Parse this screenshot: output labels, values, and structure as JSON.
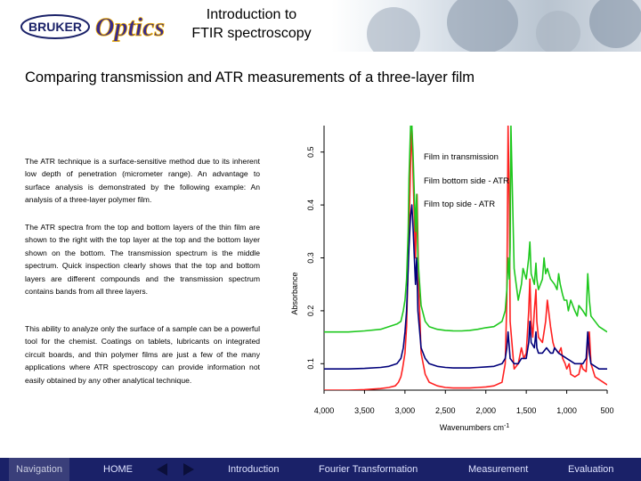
{
  "header": {
    "logo_brand": "BRUKER",
    "logo_script": "Optics",
    "title_line1": "Introduction to",
    "title_line2": "FTIR spectroscopy"
  },
  "subtitle": "Comparing transmission and ATR measurements of a three-layer film",
  "paragraphs": {
    "p1": "The ATR technique is a surface-sensitive method due to its inherent low depth of penetration (micrometer range). An advantage to surface analysis is demonstrated by the following example: An analysis of a three-layer polymer film.",
    "p2": "The ATR spectra from the top and bottom layers of the thin film are shown to the right with the top layer at the top and the bottom layer shown on the bottom.  The transmission spectrum is the middle spectrum. Quick inspection clearly shows that the top and bottom layers are different compounds and the transmission spectrum contains bands from all three layers.",
    "p3": "This ability to analyze only the surface of a sample can be a powerful tool for the chemist. Coatings on tablets, lubricants on integrated circuit boards, and thin polymer films are just a few of the many applications where ATR spectroscopy can provide information not easily obtained by any other analytical technique."
  },
  "chart_data": {
    "type": "line",
    "title": "",
    "xlabel": "Wavenumbers cm-1",
    "ylabel": "Absorbance",
    "xlim": [
      4000,
      500
    ],
    "ylim": [
      0.05,
      0.55
    ],
    "x_ticks": [
      4000,
      3500,
      3000,
      2500,
      2000,
      1500,
      1000,
      500
    ],
    "x_tick_labels": [
      "4,000",
      "3,500",
      "3,000",
      "2,500",
      "2,000",
      "1,500",
      "1,000",
      "500"
    ],
    "y_ticks": [
      0.1,
      0.2,
      0.3,
      0.4,
      0.5
    ],
    "y_tick_labels": [
      "0.1",
      "0.2",
      "0.3",
      "0.4",
      "0.5"
    ],
    "legend_placement": "top-right",
    "series": [
      {
        "name": "Film in transmission",
        "color": "#ff2020",
        "x": [
          4000,
          3700,
          3500,
          3300,
          3200,
          3120,
          3080,
          3050,
          3030,
          3000,
          2980,
          2950,
          2930,
          2915,
          2900,
          2870,
          2850,
          2830,
          2800,
          2750,
          2700,
          2600,
          2500,
          2400,
          2300,
          2200,
          2100,
          2000,
          1900,
          1800,
          1760,
          1740,
          1725,
          1710,
          1700,
          1650,
          1600,
          1560,
          1530,
          1500,
          1470,
          1455,
          1440,
          1420,
          1400,
          1380,
          1370,
          1350,
          1300,
          1260,
          1240,
          1200,
          1170,
          1150,
          1100,
          1070,
          1050,
          1020,
          1000,
          970,
          950,
          900,
          850,
          820,
          800,
          760,
          740,
          720,
          700,
          650,
          600,
          550,
          500
        ],
        "y": [
          0.05,
          0.05,
          0.051,
          0.053,
          0.055,
          0.058,
          0.065,
          0.075,
          0.09,
          0.12,
          0.17,
          0.35,
          0.48,
          0.55,
          0.46,
          0.3,
          0.42,
          0.25,
          0.12,
          0.08,
          0.065,
          0.058,
          0.055,
          0.054,
          0.054,
          0.054,
          0.055,
          0.056,
          0.058,
          0.065,
          0.1,
          0.22,
          0.55,
          0.4,
          0.18,
          0.09,
          0.1,
          0.13,
          0.11,
          0.12,
          0.2,
          0.26,
          0.18,
          0.15,
          0.2,
          0.24,
          0.18,
          0.15,
          0.14,
          0.18,
          0.22,
          0.17,
          0.14,
          0.13,
          0.12,
          0.13,
          0.11,
          0.1,
          0.09,
          0.1,
          0.08,
          0.075,
          0.08,
          0.1,
          0.09,
          0.085,
          0.14,
          0.16,
          0.1,
          0.075,
          0.07,
          0.065,
          0.06
        ]
      },
      {
        "name": "Film bottom side - ATR",
        "color": "#00007a",
        "x": [
          4000,
          3700,
          3500,
          3300,
          3200,
          3100,
          3050,
          3020,
          3000,
          2980,
          2960,
          2950,
          2930,
          2915,
          2900,
          2870,
          2855,
          2840,
          2800,
          2750,
          2700,
          2600,
          2500,
          2400,
          2300,
          2200,
          2100,
          2000,
          1900,
          1800,
          1760,
          1740,
          1725,
          1710,
          1700,
          1650,
          1600,
          1560,
          1500,
          1470,
          1455,
          1440,
          1400,
          1380,
          1370,
          1350,
          1300,
          1250,
          1200,
          1170,
          1150,
          1100,
          1050,
          1000,
          950,
          900,
          850,
          800,
          760,
          740,
          720,
          700,
          650,
          600,
          550,
          500
        ],
        "y": [
          0.09,
          0.09,
          0.091,
          0.093,
          0.095,
          0.1,
          0.11,
          0.13,
          0.16,
          0.2,
          0.28,
          0.32,
          0.38,
          0.4,
          0.36,
          0.25,
          0.3,
          0.2,
          0.13,
          0.11,
          0.1,
          0.095,
          0.093,
          0.092,
          0.092,
          0.092,
          0.093,
          0.094,
          0.095,
          0.1,
          0.11,
          0.13,
          0.16,
          0.13,
          0.11,
          0.1,
          0.1,
          0.11,
          0.11,
          0.14,
          0.18,
          0.14,
          0.13,
          0.16,
          0.13,
          0.12,
          0.12,
          0.13,
          0.12,
          0.12,
          0.13,
          0.12,
          0.115,
          0.11,
          0.105,
          0.1,
          0.1,
          0.1,
          0.11,
          0.16,
          0.12,
          0.1,
          0.095,
          0.09,
          0.09,
          0.09
        ]
      },
      {
        "name": "Film top side - ATR",
        "color": "#1ec81e",
        "x": [
          4000,
          3700,
          3500,
          3300,
          3200,
          3100,
          3050,
          3020,
          3000,
          2980,
          2960,
          2950,
          2930,
          2915,
          2900,
          2870,
          2855,
          2840,
          2800,
          2750,
          2700,
          2600,
          2500,
          2400,
          2300,
          2200,
          2100,
          2000,
          1900,
          1850,
          1800,
          1760,
          1740,
          1725,
          1710,
          1700,
          1690,
          1650,
          1600,
          1560,
          1540,
          1500,
          1470,
          1455,
          1440,
          1400,
          1380,
          1370,
          1350,
          1300,
          1280,
          1260,
          1240,
          1200,
          1150,
          1120,
          1100,
          1080,
          1050,
          1030,
          1000,
          980,
          950,
          900,
          870,
          850,
          800,
          760,
          740,
          720,
          700,
          650,
          600,
          550,
          500
        ],
        "y": [
          0.16,
          0.16,
          0.162,
          0.165,
          0.17,
          0.175,
          0.18,
          0.2,
          0.22,
          0.26,
          0.35,
          0.45,
          0.55,
          0.55,
          0.5,
          0.35,
          0.42,
          0.3,
          0.21,
          0.18,
          0.17,
          0.165,
          0.163,
          0.162,
          0.162,
          0.163,
          0.165,
          0.168,
          0.17,
          0.175,
          0.18,
          0.2,
          0.24,
          0.3,
          0.26,
          0.32,
          0.55,
          0.28,
          0.22,
          0.25,
          0.28,
          0.26,
          0.3,
          0.33,
          0.27,
          0.25,
          0.29,
          0.26,
          0.24,
          0.26,
          0.3,
          0.27,
          0.28,
          0.26,
          0.25,
          0.24,
          0.27,
          0.25,
          0.23,
          0.22,
          0.22,
          0.2,
          0.22,
          0.2,
          0.19,
          0.21,
          0.2,
          0.19,
          0.27,
          0.22,
          0.19,
          0.18,
          0.17,
          0.165,
          0.16
        ]
      }
    ]
  },
  "navbar": {
    "navigation_label": "Navigation",
    "home_label": "HOME",
    "introduction_label": "Introduction",
    "fourier_label": "Fourier Transformation",
    "measurement_label": "Measurement",
    "evaluation_label": "Evaluation",
    "prev_icon": "triangle-left",
    "next_icon": "triangle-right",
    "bar_color": "#1a2168"
  }
}
